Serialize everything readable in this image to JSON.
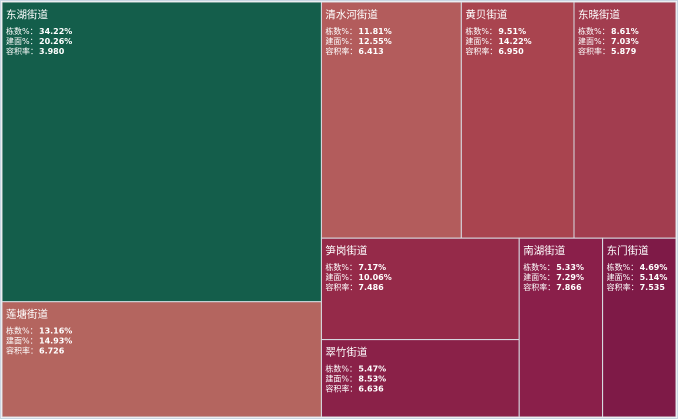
{
  "chart_data": {
    "type": "treemap",
    "categories": [
      "东湖街道",
      "莲塘街道",
      "清水河街道",
      "黄贝街道",
      "东晓街道",
      "笋岗街道",
      "翠竹街道",
      "南湖街道",
      "东门街道"
    ],
    "colors": [
      "#145e4b",
      "#b4655f",
      "#b35c5c",
      "#a9444f",
      "#a23d4f",
      "#952a49",
      "#8a2148",
      "#8a1f4a",
      "#7e1a47"
    ],
    "series": [
      {
        "name": "栋数%：",
        "values": [
          34.22,
          13.16,
          11.81,
          9.51,
          8.61,
          7.17,
          5.47,
          5.33,
          4.69
        ],
        "value_labels": [
          "34.22%",
          "13.16%",
          "11.81%",
          "9.51%",
          "8.61%",
          "7.17%",
          "5.47%",
          "5.33%",
          "4.69%"
        ]
      },
      {
        "name": "建面%：",
        "values": [
          20.26,
          14.93,
          12.55,
          14.22,
          7.03,
          10.06,
          8.53,
          7.29,
          5.14
        ],
        "value_labels": [
          "20.26%",
          "14.93%",
          "12.55%",
          "14.22%",
          "7.03%",
          "10.06%",
          "8.53%",
          "7.29%",
          "5.14%"
        ]
      },
      {
        "name": "容积率：",
        "values": [
          3.98,
          6.726,
          6.413,
          6.95,
          5.879,
          7.486,
          6.636,
          7.866,
          7.535
        ],
        "value_labels": [
          "3.980",
          "6.726",
          "6.413",
          "6.950",
          "5.879",
          "7.486",
          "6.636",
          "7.866",
          "7.535"
        ]
      }
    ]
  }
}
